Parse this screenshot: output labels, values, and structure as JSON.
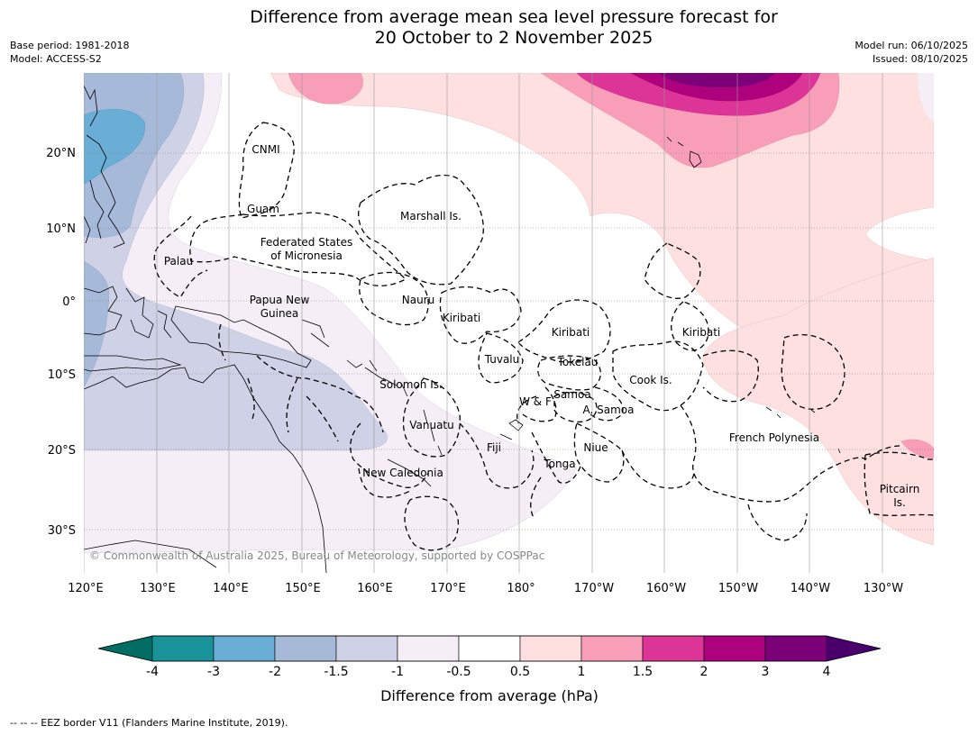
{
  "title_line1": "Difference from average mean sea level pressure forecast for",
  "title_line2": "20 October to 2 November 2025",
  "base_period": "Base period: 1981-2018",
  "model": "Model: ACCESS-S2",
  "model_run": "Model run: 06/10/2025",
  "issued": "Issued: 08/10/2025",
  "lon_labels": [
    "120°E",
    "130°E",
    "140°E",
    "150°E",
    "160°E",
    "170°E",
    "180°",
    "170°W",
    "160°W",
    "150°W",
    "140°W",
    "130°W"
  ],
  "lat_labels": [
    "20°N",
    "10°N",
    "0°",
    "10°S",
    "20°S",
    "30°S"
  ],
  "place_labels": {
    "cnmi": "CNMI",
    "guam": "Guam",
    "marshall": "Marshall Is.",
    "fsm_1": "Federated States",
    "fsm_2": "of Micronesia",
    "palau": "Palau",
    "png_1": "Papua New",
    "png_2": "Guinea",
    "nauru": "Nauru",
    "kiribati_w": "Kiribati",
    "kiribati_c": "Kiribati",
    "kiribati_e": "Kiribati",
    "tuvalu": "Tuvalu",
    "tokelau": "Tokelau",
    "cook": "Cook Is.",
    "solomon": "Solomon Is.",
    "wf": "W & F",
    "samoa": "Samoa",
    "asamoa": "A. Samoa",
    "vanuatu": "Vanuatu",
    "fiji": "Fiji",
    "niue": "Niue",
    "tonga": "Tonga",
    "newcal": "New Caledonia",
    "fp": "French Polynesia",
    "pitcairn_1": "Pitcairn",
    "pitcairn_2": "Is."
  },
  "copyright": "© Commonwealth of Australia 2025, Bureau of Meteorology, supported by COSPPac",
  "colorbar": {
    "ticks": [
      "-4",
      "-3",
      "-2",
      "-1.5",
      "-1",
      "-0.5",
      "0.5",
      "1",
      "1.5",
      "2",
      "3",
      "4"
    ],
    "colors": [
      "#1a9299",
      "#6aadd5",
      "#a7b9d8",
      "#cfd1e6",
      "#f5eef6",
      "#ffffff",
      "#fde0df",
      "#f99eb8",
      "#dd3497",
      "#ae017e",
      "#7a0177"
    ],
    "under_color": "#006d63",
    "over_color": "#49006a",
    "label": "Difference from average (hPa)"
  },
  "footer": "--  --  -- EEZ border V11 (Flanders Marine Institute, 2019)."
}
